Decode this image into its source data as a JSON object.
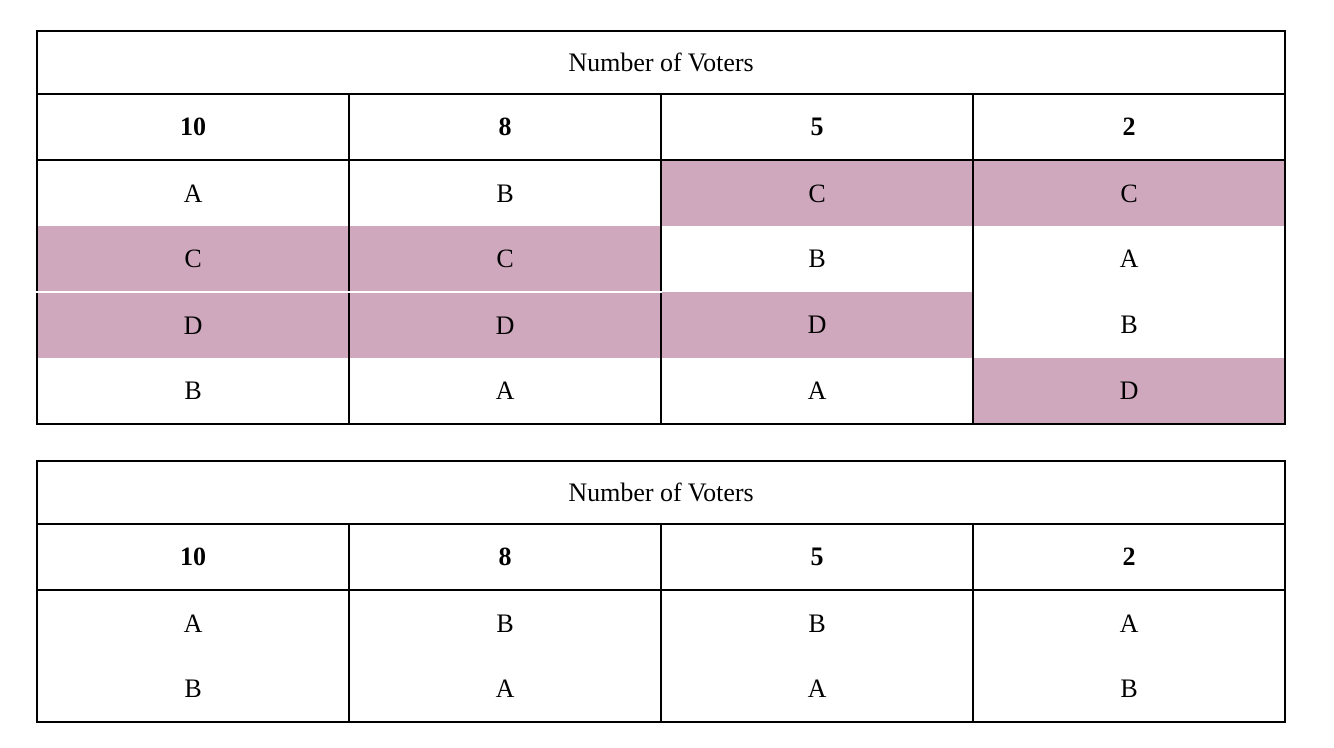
{
  "highlight_color": "#cfa8bd",
  "table1": {
    "title": "Number of Voters",
    "counts": [
      "10",
      "8",
      "5",
      "2"
    ],
    "rows": [
      [
        "A",
        "B",
        "C",
        "C"
      ],
      [
        "C",
        "C",
        "B",
        "A"
      ],
      [
        "D",
        "D",
        "D",
        "B"
      ],
      [
        "B",
        "A",
        "A",
        "D"
      ]
    ],
    "highlighted": [
      [
        false,
        false,
        true,
        true
      ],
      [
        true,
        true,
        false,
        false
      ],
      [
        true,
        true,
        true,
        false
      ],
      [
        false,
        false,
        false,
        true
      ]
    ]
  },
  "table2": {
    "title": "Number of Voters",
    "counts": [
      "10",
      "8",
      "5",
      "2"
    ],
    "rows": [
      [
        "A",
        "B",
        "B",
        "A"
      ],
      [
        "B",
        "A",
        "A",
        "B"
      ]
    ]
  }
}
